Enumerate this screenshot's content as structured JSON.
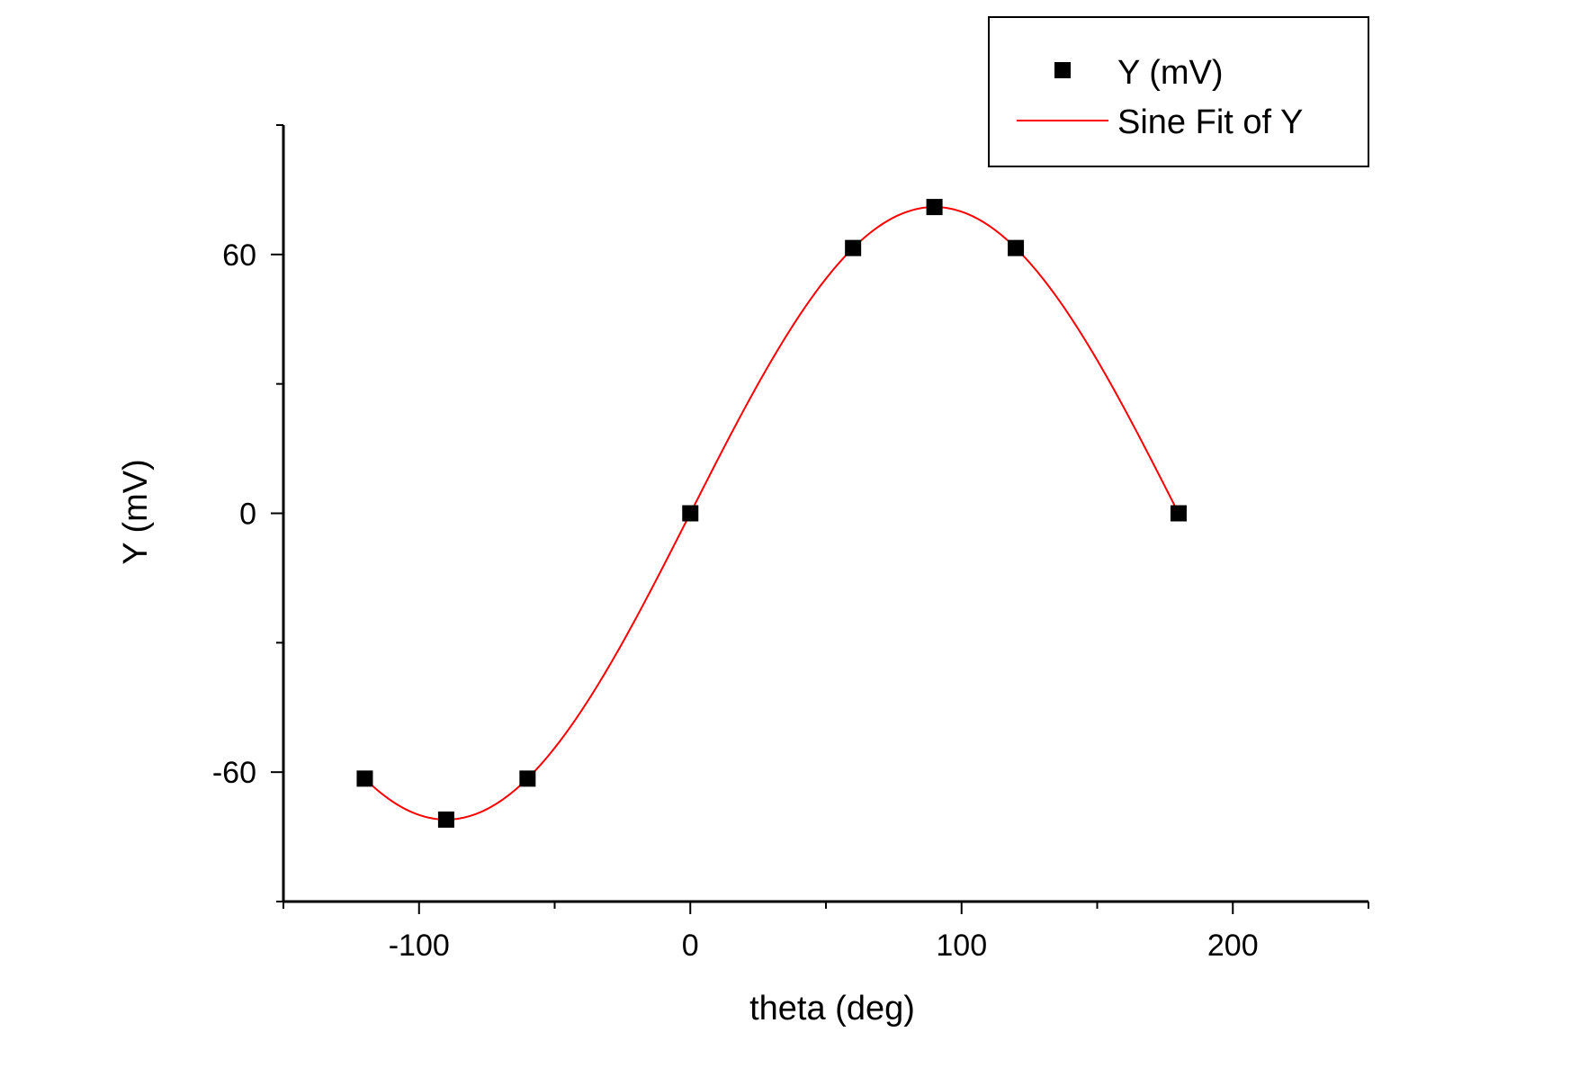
{
  "chart_data": {
    "type": "scatter",
    "xlabel": "theta (deg)",
    "ylabel": "Y (mV)",
    "xlim": [
      -150,
      250
    ],
    "ylim": [
      -90,
      90
    ],
    "x_ticks": [
      -100,
      0,
      100,
      200
    ],
    "x_minor_ticks": [
      -150,
      -50,
      50,
      150,
      250
    ],
    "y_ticks": [
      -60,
      0,
      60
    ],
    "y_minor_ticks": [
      -90,
      -30,
      30,
      90
    ],
    "grid": false,
    "legend_position": "top-right",
    "series": [
      {
        "name": "Y (mV)",
        "kind": "scatter",
        "marker": "square",
        "color": "#000000",
        "x": [
          -120,
          -90,
          -60,
          0,
          60,
          90,
          120,
          180
        ],
        "y": [
          -61.5,
          -71,
          -61.5,
          0,
          61.5,
          71,
          61.5,
          0
        ]
      },
      {
        "name": "Sine Fit of Y",
        "kind": "line",
        "color": "#ff0000",
        "function": "sine",
        "amplitude": 71,
        "period_deg": 360,
        "phase_deg": 0,
        "offset": 0,
        "x_range": [
          -120,
          180
        ]
      }
    ]
  }
}
